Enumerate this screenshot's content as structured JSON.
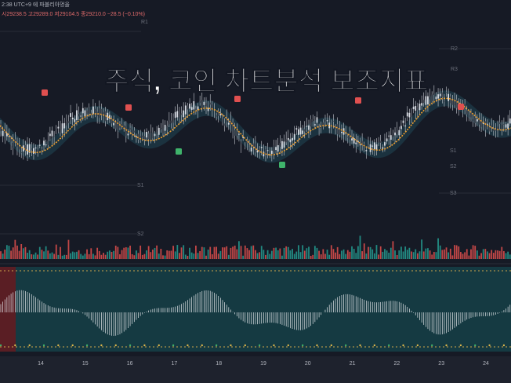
{
  "header": {
    "line1": "2:38 UTC+9 에 파블리아멍을",
    "line2": "시29238.5 고29289.0 저29104.5 종29210.0 −28.5 (−0.10%)"
  },
  "title": "주식, 코인 차트분석 보조지표",
  "levels": [
    "R1",
    "R2",
    "R3",
    "S1",
    "S2",
    "S3",
    "S1",
    "S2"
  ],
  "x_axis": [
    "14",
    "15",
    "16",
    "17",
    "18",
    "19",
    "20",
    "21",
    "22",
    "23",
    "24"
  ]
}
